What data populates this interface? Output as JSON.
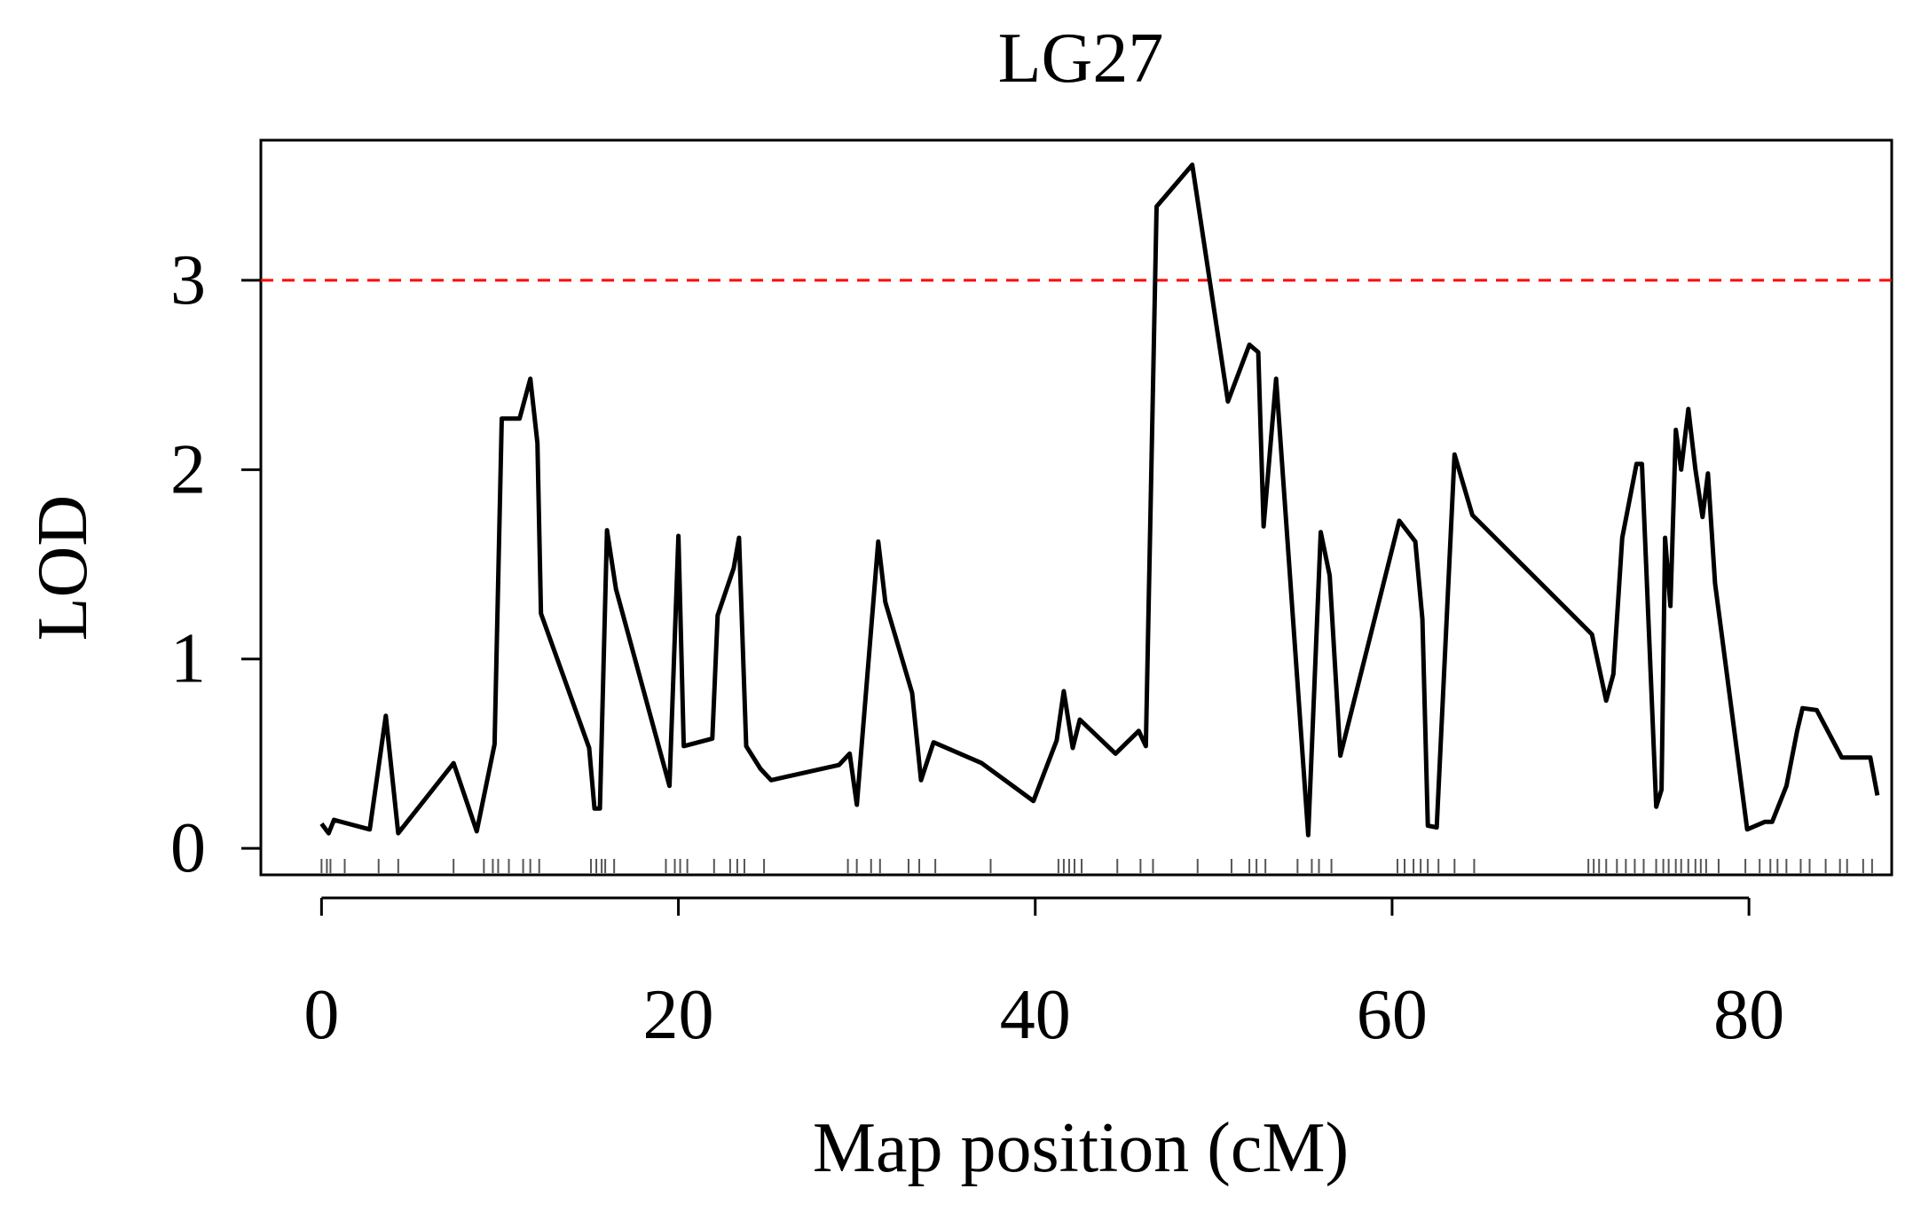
{
  "chart_data": {
    "type": "line",
    "title": "LG27",
    "xlabel": "Map position (cM)",
    "ylabel": "LOD",
    "xlim": [
      -3.4,
      88.0
    ],
    "ylim": [
      -0.14,
      3.74
    ],
    "x_ticks": [
      0,
      20,
      40,
      60,
      80
    ],
    "y_ticks": [
      0,
      1,
      2,
      3
    ],
    "threshold": {
      "value": 3,
      "color": "#ff0000",
      "style": "dashed"
    },
    "grid": false,
    "legend": "none",
    "series": [
      {
        "color": "#000000",
        "points": [
          [
            0.0,
            0.13
          ],
          [
            0.4,
            0.08
          ],
          [
            0.7,
            0.15
          ],
          [
            2.7,
            0.1
          ],
          [
            3.6,
            0.7
          ],
          [
            4.3,
            0.08
          ],
          [
            7.4,
            0.45
          ],
          [
            8.7,
            0.09
          ],
          [
            9.7,
            0.55
          ],
          [
            10.1,
            2.27
          ],
          [
            11.1,
            2.27
          ],
          [
            11.7,
            2.48
          ],
          [
            12.1,
            2.14
          ],
          [
            12.3,
            1.24
          ],
          [
            15.0,
            0.53
          ],
          [
            15.3,
            0.21
          ],
          [
            15.6,
            0.21
          ],
          [
            16.0,
            1.68
          ],
          [
            16.5,
            1.37
          ],
          [
            19.5,
            0.33
          ],
          [
            20.0,
            1.65
          ],
          [
            20.3,
            0.54
          ],
          [
            21.9,
            0.58
          ],
          [
            22.2,
            1.23
          ],
          [
            23.1,
            1.48
          ],
          [
            23.4,
            1.64
          ],
          [
            23.8,
            0.54
          ],
          [
            24.6,
            0.42
          ],
          [
            25.2,
            0.36
          ],
          [
            29.0,
            0.44
          ],
          [
            29.6,
            0.5
          ],
          [
            30.0,
            0.23
          ],
          [
            31.2,
            1.62
          ],
          [
            31.6,
            1.3
          ],
          [
            33.1,
            0.82
          ],
          [
            33.6,
            0.36
          ],
          [
            34.3,
            0.56
          ],
          [
            37.0,
            0.45
          ],
          [
            39.9,
            0.25
          ],
          [
            41.2,
            0.57
          ],
          [
            41.6,
            0.83
          ],
          [
            42.1,
            0.53
          ],
          [
            42.5,
            0.68
          ],
          [
            44.5,
            0.5
          ],
          [
            45.8,
            0.62
          ],
          [
            46.2,
            0.54
          ],
          [
            46.8,
            3.39
          ],
          [
            48.8,
            3.61
          ],
          [
            50.8,
            2.36
          ],
          [
            52.0,
            2.66
          ],
          [
            52.5,
            2.62
          ],
          [
            52.8,
            1.7
          ],
          [
            53.5,
            2.48
          ],
          [
            55.3,
            0.07
          ],
          [
            56.0,
            1.67
          ],
          [
            56.5,
            1.44
          ],
          [
            57.1,
            0.49
          ],
          [
            60.4,
            1.73
          ],
          [
            61.3,
            1.62
          ],
          [
            61.7,
            1.21
          ],
          [
            62.0,
            0.12
          ],
          [
            62.5,
            0.11
          ],
          [
            63.5,
            2.08
          ],
          [
            64.5,
            1.76
          ],
          [
            71.2,
            1.13
          ],
          [
            72.0,
            0.78
          ],
          [
            72.4,
            0.92
          ],
          [
            72.9,
            1.64
          ],
          [
            73.7,
            2.03
          ],
          [
            74.0,
            2.03
          ],
          [
            74.8,
            0.22
          ],
          [
            75.1,
            0.31
          ],
          [
            75.3,
            1.64
          ],
          [
            75.6,
            1.28
          ],
          [
            75.9,
            2.21
          ],
          [
            76.2,
            2.0
          ],
          [
            76.6,
            2.32
          ],
          [
            77.0,
            2.0
          ],
          [
            77.4,
            1.75
          ],
          [
            77.7,
            1.98
          ],
          [
            78.1,
            1.4
          ],
          [
            79.9,
            0.1
          ],
          [
            80.9,
            0.14
          ],
          [
            81.3,
            0.14
          ],
          [
            82.1,
            0.33
          ],
          [
            82.7,
            0.62
          ],
          [
            83.0,
            0.74
          ],
          [
            83.8,
            0.73
          ],
          [
            85.2,
            0.48
          ],
          [
            86.8,
            0.48
          ],
          [
            87.2,
            0.28
          ]
        ]
      }
    ],
    "markers": [
      0.0,
      0.3,
      0.5,
      1.3,
      3.2,
      4.3,
      7.4,
      9.1,
      9.6,
      9.9,
      10.5,
      11.3,
      11.7,
      12.2,
      15.1,
      15.4,
      15.7,
      15.9,
      16.4,
      19.3,
      19.8,
      20.1,
      20.5,
      22.0,
      22.9,
      23.3,
      23.7,
      24.8,
      29.5,
      30.0,
      30.8,
      31.3,
      32.9,
      33.5,
      34.4,
      37.5,
      41.3,
      41.6,
      41.9,
      42.2,
      42.6,
      44.6,
      45.9,
      46.6,
      49.1,
      51.0,
      52.0,
      52.4,
      52.9,
      54.7,
      55.5,
      55.9,
      56.6,
      60.3,
      60.7,
      61.2,
      61.6,
      62.0,
      62.6,
      63.5,
      64.6,
      71.0,
      71.3,
      71.6,
      72.0,
      72.6,
      73.1,
      73.6,
      74.1,
      74.8,
      75.2,
      75.5,
      75.9,
      76.2,
      76.6,
      77.0,
      77.3,
      77.6,
      78.3,
      79.8,
      80.6,
      81.2,
      81.6,
      82.1,
      82.9,
      83.4,
      84.3,
      85.1,
      85.5,
      86.4,
      86.9
    ]
  }
}
